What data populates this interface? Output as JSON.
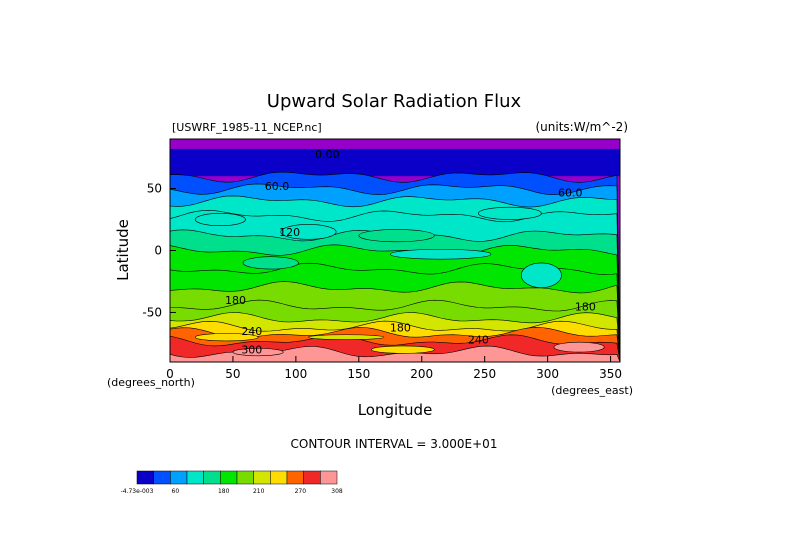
{
  "chart_data": {
    "type": "contour",
    "title": "Upward Solar Radiation Flux",
    "file_label": "[USWRF_1985-11_NCEP.nc]",
    "units_label": "(units:W/m^-2)",
    "xlabel": "Longitude",
    "ylabel": "Latitude",
    "x_unit_label": "(degrees_east)",
    "y_unit_label": "(degrees_north)",
    "xlim": [
      0,
      357.5
    ],
    "ylim": [
      -90,
      90
    ],
    "xticks": [
      0,
      50,
      100,
      150,
      200,
      250,
      300,
      350
    ],
    "yticks": [
      50,
      0,
      -50
    ],
    "contour_interval_text": "CONTOUR INTERVAL = 3.000E+01",
    "contour_labels": [
      {
        "text": "0.00",
        "lon": 125,
        "lat": 78
      },
      {
        "text": "60.0",
        "lon": 85,
        "lat": 52
      },
      {
        "text": "60.0",
        "lon": 318,
        "lat": 47
      },
      {
        "text": "120",
        "lon": 95,
        "lat": 15
      },
      {
        "text": "180",
        "lon": 52,
        "lat": -40
      },
      {
        "text": "180",
        "lon": 330,
        "lat": -45
      },
      {
        "text": "180",
        "lon": 183,
        "lat": -62
      },
      {
        "text": "240",
        "lon": 65,
        "lat": -65
      },
      {
        "text": "240",
        "lon": 245,
        "lat": -72
      },
      {
        "text": "300",
        "lon": 65,
        "lat": -80
      }
    ],
    "colorbar": {
      "colors": [
        "#0a00c8",
        "#0050ff",
        "#00a0ff",
        "#00e6c8",
        "#00e08c",
        "#00e600",
        "#78dc00",
        "#d2e600",
        "#ffdc00",
        "#ff6400",
        "#f02828",
        "#ff9696"
      ],
      "tick_labels": [
        "-4.73e-003",
        "60",
        "180",
        "210",
        "270",
        "308"
      ]
    }
  }
}
